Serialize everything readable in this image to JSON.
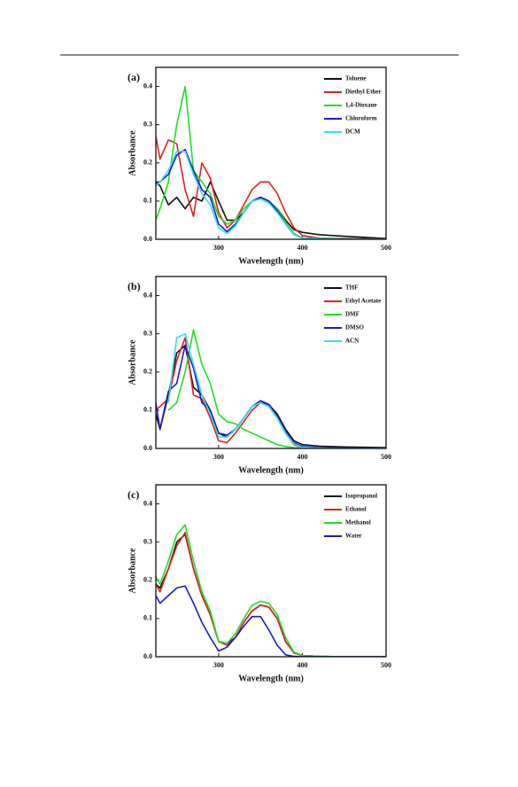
{
  "chart_data": [
    {
      "type": "line",
      "label": "(a)",
      "x_label": "Wavelength (nm)",
      "y_label": "Absorbance",
      "x": [
        225,
        230,
        240,
        250,
        260,
        270,
        280,
        290,
        300,
        310,
        320,
        330,
        340,
        350,
        360,
        370,
        380,
        390,
        400,
        420,
        450,
        500
      ],
      "xlim": [
        225,
        500
      ],
      "xticks": [
        300,
        400,
        500
      ],
      "ylim": [
        0,
        0.45
      ],
      "yticks": [
        {
          "value": 0,
          "label": "0.0"
        },
        0.1,
        0.2,
        0.3,
        0.4
      ],
      "series": [
        {
          "name": "Toluene",
          "color": "#111111",
          "values": [
            0.15,
            0.14,
            0.09,
            0.11,
            0.08,
            0.11,
            0.1,
            0.15,
            0.1,
            0.05,
            0.05,
            0.07,
            0.1,
            0.11,
            0.1,
            0.08,
            0.05,
            0.025,
            0.018,
            0.012,
            0.008,
            0.002
          ]
        },
        {
          "name": "Diethyl Ether",
          "color": "#e02020",
          "values": [
            0.27,
            0.21,
            0.26,
            0.25,
            0.13,
            0.06,
            0.2,
            0.16,
            0.07,
            0.03,
            0.05,
            0.09,
            0.13,
            0.15,
            0.15,
            0.12,
            0.07,
            0.03,
            0.01,
            0.003,
            0.002,
            0.001
          ]
        },
        {
          "name": "1,4-Dioxane",
          "color": "#22dd22",
          "values": [
            0.05,
            0.08,
            0.15,
            0.3,
            0.4,
            0.18,
            0.15,
            0.12,
            0.06,
            0.04,
            0.05,
            0.08,
            0.1,
            0.11,
            0.1,
            0.08,
            0.045,
            0.015,
            0.004,
            0.002,
            0.001,
            0
          ]
        },
        {
          "name": "Chloroform",
          "color": "#1a1acc",
          "values": [
            0.15,
            0.15,
            0.17,
            0.22,
            0.235,
            0.18,
            0.13,
            0.11,
            0.04,
            0.02,
            0.04,
            0.07,
            0.1,
            0.11,
            0.1,
            0.075,
            0.04,
            0.012,
            0.003,
            0.001,
            0,
            0
          ]
        },
        {
          "name": "DCM",
          "color": "#33ddf0",
          "values": [
            0.14,
            0.15,
            0.18,
            0.23,
            0.23,
            0.17,
            0.12,
            0.09,
            0.03,
            0.015,
            0.035,
            0.07,
            0.1,
            0.105,
            0.095,
            0.07,
            0.04,
            0.012,
            0.003,
            0.001,
            0,
            0
          ]
        }
      ]
    },
    {
      "type": "line",
      "label": "(b)",
      "x_label": "Wavelength (nm)",
      "y_label": "Absorbance",
      "x": [
        225,
        230,
        240,
        250,
        260,
        270,
        280,
        290,
        300,
        310,
        320,
        330,
        340,
        350,
        360,
        370,
        380,
        390,
        400,
        420,
        450,
        500
      ],
      "xlim": [
        225,
        500
      ],
      "xticks": [
        300,
        400,
        500
      ],
      "ylim": [
        0,
        0.45
      ],
      "yticks": [
        {
          "value": 0,
          "label": "0.0"
        },
        0.1,
        0.2,
        0.3,
        0.4
      ],
      "series": [
        {
          "name": "THF",
          "color": "#111111",
          "values": [
            0.09,
            0.05,
            0.14,
            0.25,
            0.27,
            0.16,
            0.14,
            0.1,
            0.04,
            0.03,
            0.05,
            0.08,
            0.11,
            0.12,
            0.115,
            0.09,
            0.05,
            0.02,
            0.01,
            0.006,
            0.004,
            0.002
          ]
        },
        {
          "name": "Ethyl Acetate",
          "color": "#e02020",
          "values": [
            0.1,
            0.11,
            0.13,
            0.23,
            0.29,
            0.14,
            0.13,
            0.08,
            0.02,
            0.015,
            0.04,
            0.07,
            0.1,
            0.12,
            0.11,
            0.08,
            0.04,
            0.01,
            0.003,
            0.001,
            0,
            0
          ]
        },
        {
          "name": "DMF",
          "color": "#22dd22",
          "values": [
            null,
            null,
            0.1,
            0.12,
            0.2,
            0.31,
            0.22,
            0.17,
            0.09,
            0.07,
            0.065,
            0.05,
            0.04,
            0.03,
            0.02,
            0.01,
            0.005,
            0.002,
            0.001,
            0,
            0,
            0
          ]
        },
        {
          "name": "DMSO",
          "color": "#1a1acc",
          "values": [
            0.12,
            0.05,
            0.15,
            0.17,
            0.27,
            0.21,
            0.12,
            0.1,
            0.04,
            0.035,
            0.05,
            0.08,
            0.11,
            0.125,
            0.115,
            0.085,
            0.045,
            0.015,
            0.005,
            0.002,
            0.001,
            0
          ]
        },
        {
          "name": "ACN",
          "color": "#33ddf0",
          "values": [
            null,
            null,
            0.12,
            0.29,
            0.3,
            0.22,
            0.14,
            0.09,
            0.03,
            0.03,
            0.05,
            0.08,
            0.11,
            0.12,
            0.11,
            0.08,
            0.04,
            0.012,
            0.003,
            0.001,
            0,
            0
          ]
        }
      ]
    },
    {
      "type": "line",
      "label": "(c)",
      "x_label": "Wavelength (nm)",
      "y_label": "Absorbance",
      "x": [
        225,
        230,
        240,
        250,
        260,
        270,
        280,
        290,
        300,
        310,
        320,
        330,
        340,
        350,
        360,
        370,
        380,
        390,
        400,
        420,
        450,
        500
      ],
      "xlim": [
        225,
        500
      ],
      "xticks": [
        300,
        400,
        500
      ],
      "ylim": [
        0,
        0.45
      ],
      "yticks": [
        {
          "value": 0,
          "label": "0.0"
        },
        0.1,
        0.2,
        0.3,
        0.4
      ],
      "series": [
        {
          "name": "Isopropanol",
          "color": "#111111",
          "values": [
            0.19,
            0.18,
            0.23,
            0.3,
            0.32,
            0.23,
            0.16,
            0.11,
            0.04,
            0.035,
            0.05,
            0.09,
            0.12,
            0.135,
            0.13,
            0.1,
            0.04,
            0.01,
            0.003,
            0.001,
            0,
            0
          ]
        },
        {
          "name": "Ethanol",
          "color": "#e02020",
          "values": [
            0.19,
            0.17,
            0.23,
            0.29,
            0.325,
            0.23,
            0.16,
            0.11,
            0.04,
            0.03,
            0.05,
            0.09,
            0.12,
            0.135,
            0.13,
            0.1,
            0.04,
            0.01,
            0.003,
            0.001,
            0,
            0
          ]
        },
        {
          "name": "Methanol",
          "color": "#22dd22",
          "values": [
            0.21,
            0.19,
            0.25,
            0.32,
            0.345,
            0.25,
            0.17,
            0.12,
            0.04,
            0.035,
            0.06,
            0.1,
            0.135,
            0.145,
            0.14,
            0.11,
            0.05,
            0.012,
            0.003,
            0.001,
            0,
            0
          ]
        },
        {
          "name": "Water",
          "color": "#1a1acc",
          "values": [
            0.16,
            0.14,
            0.16,
            0.18,
            0.185,
            0.14,
            0.09,
            0.05,
            0.015,
            0.025,
            0.05,
            0.08,
            0.105,
            0.105,
            0.07,
            0.03,
            0.005,
            0.001,
            0,
            0,
            0,
            0
          ]
        }
      ]
    }
  ]
}
